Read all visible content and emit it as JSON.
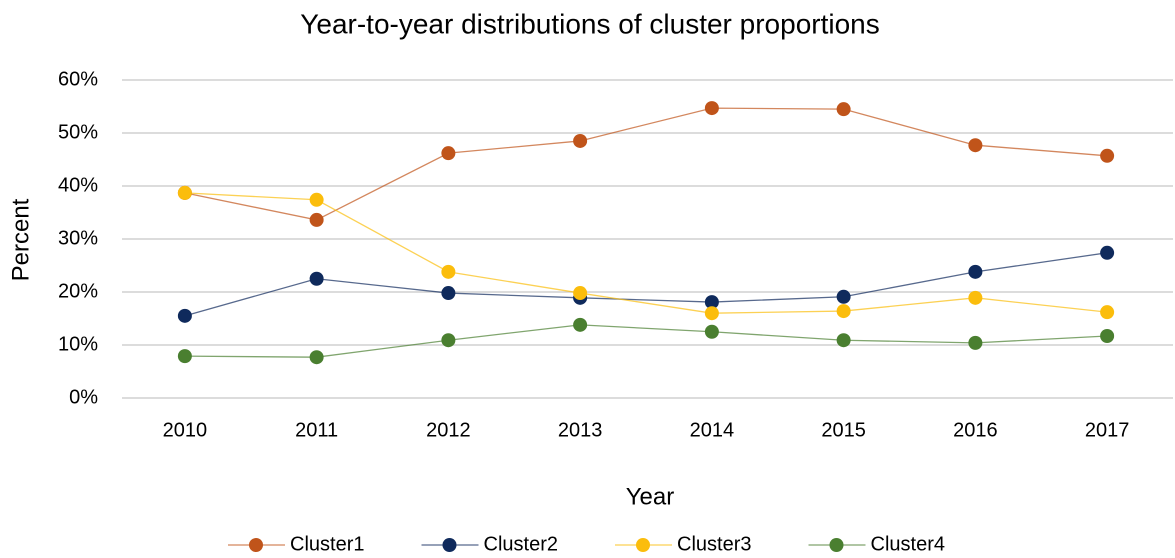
{
  "chart_data": {
    "type": "line",
    "title": "Year-to-year distributions of cluster proportions",
    "x_label": "Year",
    "y_label": "Percent",
    "categories": [
      "2010",
      "2011",
      "2012",
      "2013",
      "2014",
      "2015",
      "2016",
      "2017"
    ],
    "series": [
      {
        "name": "Cluster1",
        "color": "#c0541a",
        "values": [
          38.7,
          33.6,
          46.2,
          48.5,
          54.7,
          54.5,
          47.7,
          45.7
        ]
      },
      {
        "name": "Cluster2",
        "color": "#0f2a5c",
        "values": [
          15.5,
          22.5,
          19.8,
          18.9,
          18.1,
          19.1,
          23.8,
          27.4
        ]
      },
      {
        "name": "Cluster3",
        "color": "#fbbd0c",
        "values": [
          38.7,
          37.4,
          23.8,
          19.8,
          16.0,
          16.4,
          18.9,
          16.2
        ]
      },
      {
        "name": "Cluster4",
        "color": "#4a7f30",
        "values": [
          7.9,
          7.7,
          10.9,
          13.8,
          12.5,
          10.9,
          10.4,
          11.7
        ]
      }
    ],
    "ylim": [
      0,
      60
    ],
    "yticks": [
      {
        "value": 0,
        "label": "0%"
      },
      {
        "value": 10,
        "label": "10%"
      },
      {
        "value": 20,
        "label": "20%"
      },
      {
        "value": 30,
        "label": "30%"
      },
      {
        "value": 40,
        "label": "40%"
      },
      {
        "value": 50,
        "label": "50%"
      },
      {
        "value": 60,
        "label": "60%"
      }
    ],
    "grid": true,
    "legend": "bottom"
  }
}
